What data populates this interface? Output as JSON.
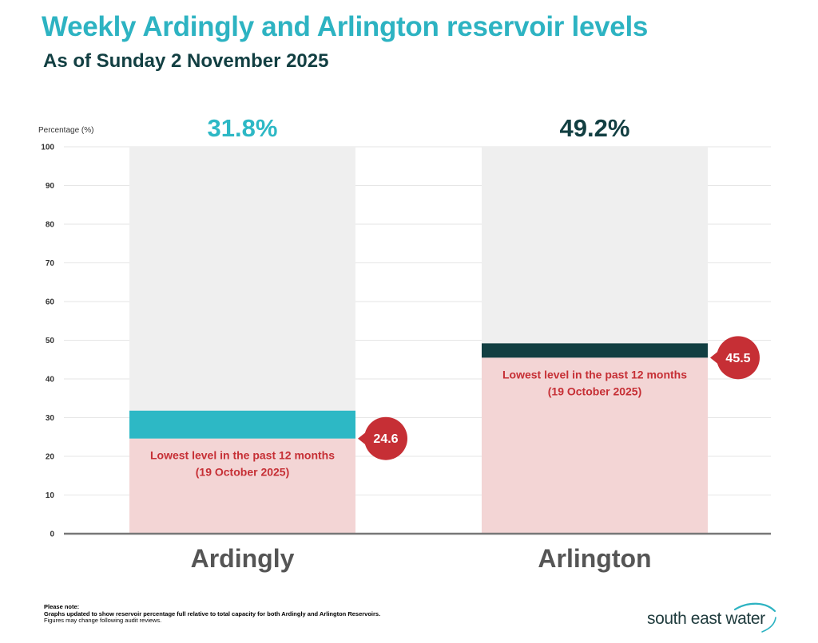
{
  "header": {
    "title": "Weekly Ardingly and Arlington reservoir levels",
    "subtitle": "As of Sunday 2 November 2025"
  },
  "chart_data": {
    "type": "bar",
    "ylabel": "Percentage (%)",
    "ylim": [
      0,
      100
    ],
    "yticks": [
      0,
      10,
      20,
      30,
      40,
      50,
      60,
      70,
      80,
      90,
      100
    ],
    "grid": true,
    "categories": [
      "Ardingly",
      "Arlington"
    ],
    "values": [
      31.8,
      49.2
    ],
    "value_labels": [
      "31.8%",
      "49.2%"
    ],
    "lowest_levels": [
      24.6,
      45.5
    ],
    "lowest_value_labels": [
      "24.6",
      "45.5"
    ],
    "lowest_label_line1": "Lowest level in the past 12 months",
    "lowest_label_line2": "(19 October 2025)",
    "colors": {
      "capacity_background": "#efefef",
      "lowest_fill": "#f3d5d5",
      "lowest_text": "#c62f35",
      "badge": "#c62f35",
      "gridline": "#e6e6e6",
      "baseline": "#777777",
      "tick_text": "#333333",
      "category_text": "#555555"
    },
    "bar_colors": [
      "#2db8c5",
      "#123f42"
    ]
  },
  "footer": {
    "note_heading": "Please note:",
    "note_line1": "Graphs updated to show reservoir percentage full relative to total capacity for both Ardingly and Arlington Reservoirs.",
    "note_line2": "Figures may change following audit reviews.",
    "logo_text": "south east water",
    "logo_color": "#2db3c2"
  }
}
